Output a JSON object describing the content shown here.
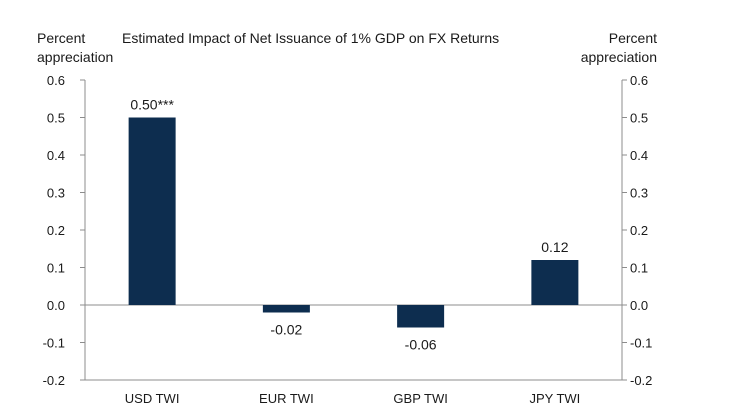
{
  "chart_data": {
    "type": "bar",
    "title": "Estimated Impact of Net Issuance of 1% GDP on FX Returns",
    "ylabel_left": [
      "Percent",
      "appreciation"
    ],
    "ylabel_right": [
      "Percent",
      "appreciation"
    ],
    "categories": [
      "USD TWI",
      "EUR TWI",
      "GBP TWI",
      "JPY TWI"
    ],
    "values": [
      0.5,
      -0.02,
      -0.06,
      0.12
    ],
    "data_labels": [
      "0.50***",
      "-0.02",
      "-0.06",
      "0.12"
    ],
    "ylim": [
      -0.2,
      0.6
    ],
    "yticks": [
      -0.2,
      -0.1,
      0.0,
      0.1,
      0.2,
      0.3,
      0.4,
      0.5,
      0.6
    ],
    "ytick_labels": [
      "-0.2",
      "-0.1",
      "0.0",
      "0.1",
      "0.2",
      "0.3",
      "0.4",
      "0.5",
      "0.6"
    ],
    "bar_color": "#0d2d4f",
    "axis_color": "#8c8c8c",
    "grid": false,
    "legend": "none"
  }
}
